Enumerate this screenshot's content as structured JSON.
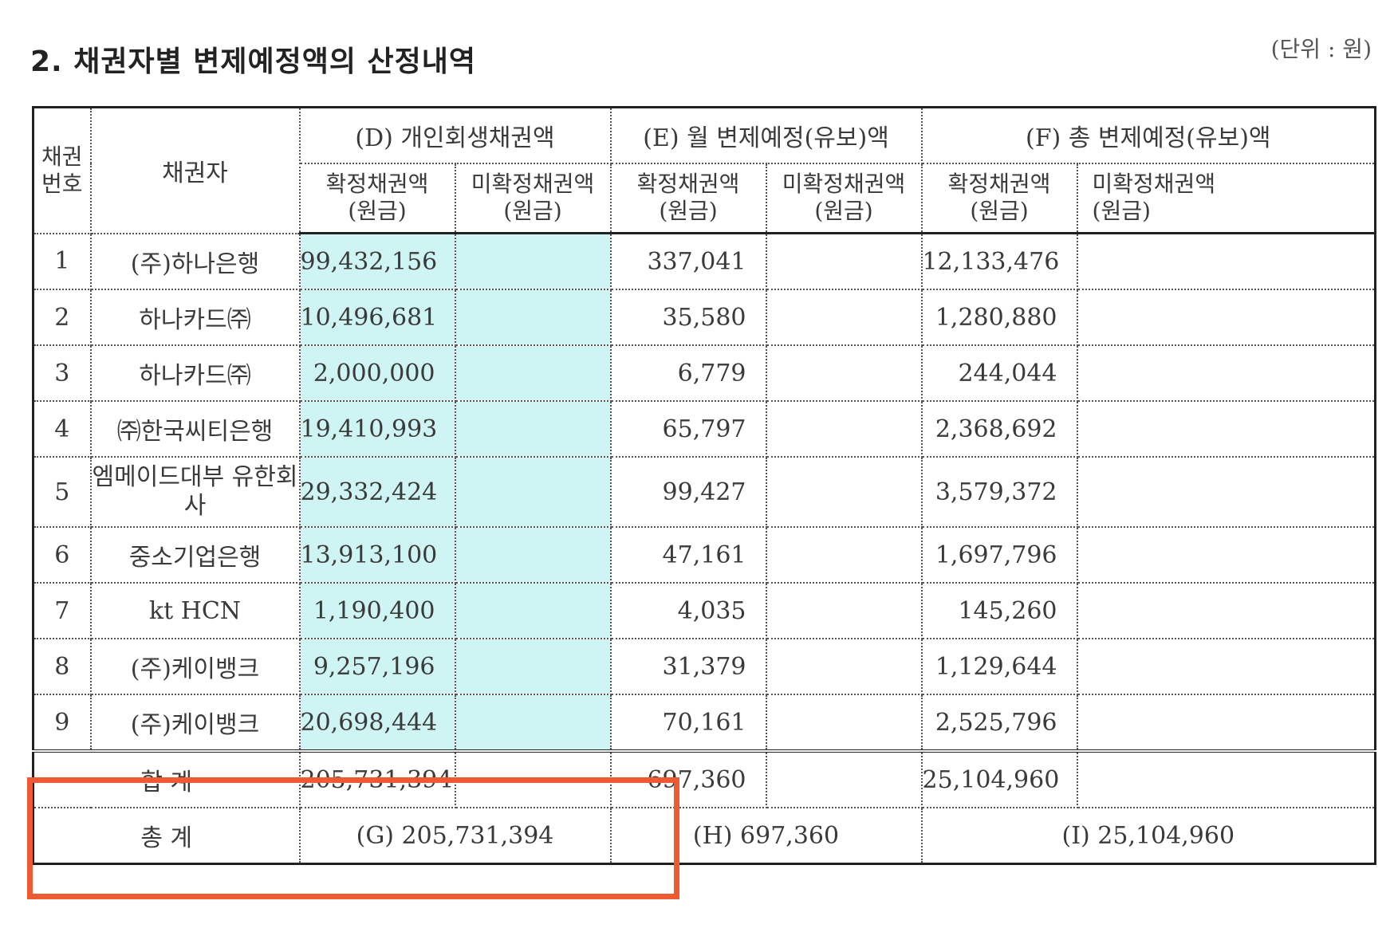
{
  "title": "2. 채권자별 변제예정액의 산정내역",
  "unit": "(단위 : 원)",
  "header": {
    "col_no": "채권\n번호",
    "col_creditor": "채권자",
    "group_d": "(D) 개인회생채권액",
    "group_e": "(E) 월 변제예정(유보)액",
    "group_f": "(F) 총 변제예정(유보)액",
    "confirmed": "확정채권액\n(원금)",
    "unconfirmed": "미확정채권액\n(원금)"
  },
  "rows": [
    {
      "no": "1",
      "creditor": "(주)하나은행",
      "d": "99,432,156",
      "d2": "",
      "e": "337,041",
      "e2": "",
      "f": "12,133,476",
      "f2": ""
    },
    {
      "no": "2",
      "creditor": "하나카드㈜",
      "d": "10,496,681",
      "d2": "",
      "e": "35,580",
      "e2": "",
      "f": "1,280,880",
      "f2": ""
    },
    {
      "no": "3",
      "creditor": "하나카드㈜",
      "d": "2,000,000",
      "d2": "",
      "e": "6,779",
      "e2": "",
      "f": "244,044",
      "f2": ""
    },
    {
      "no": "4",
      "creditor": "㈜한국씨티은행",
      "d": "19,410,993",
      "d2": "",
      "e": "65,797",
      "e2": "",
      "f": "2,368,692",
      "f2": ""
    },
    {
      "no": "5",
      "creditor": "엠메이드대부 유한회사",
      "d": "29,332,424",
      "d2": "",
      "e": "99,427",
      "e2": "",
      "f": "3,579,372",
      "f2": ""
    },
    {
      "no": "6",
      "creditor": "중소기업은행",
      "d": "13,913,100",
      "d2": "",
      "e": "47,161",
      "e2": "",
      "f": "1,697,796",
      "f2": ""
    },
    {
      "no": "7",
      "creditor": "kt HCN",
      "d": "1,190,400",
      "d2": "",
      "e": "4,035",
      "e2": "",
      "f": "145,260",
      "f2": ""
    },
    {
      "no": "8",
      "creditor": "(주)케이뱅크",
      "d": "9,257,196",
      "d2": "",
      "e": "31,379",
      "e2": "",
      "f": "1,129,644",
      "f2": ""
    },
    {
      "no": "9",
      "creditor": "(주)케이뱅크",
      "d": "20,698,444",
      "d2": "",
      "e": "70,161",
      "e2": "",
      "f": "2,525,796",
      "f2": ""
    }
  ],
  "sum": {
    "label": "합 계",
    "d": "205,731,394",
    "e": "697,360",
    "f": "25,104,960"
  },
  "total": {
    "label": "총 계",
    "g": "(G) 205,731,394",
    "h": "(H) 697,360",
    "i": "(I) 25,104,960"
  },
  "colors": {
    "highlight_box": "#f05a33",
    "confirmed_fill": "#cff4f4"
  }
}
